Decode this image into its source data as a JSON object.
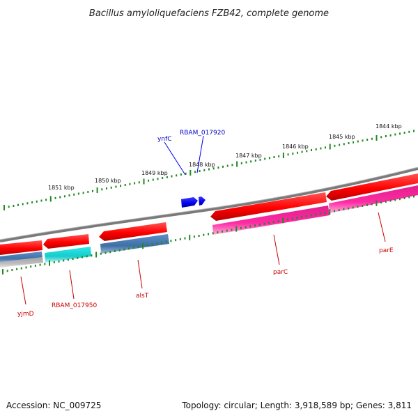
{
  "title": "Bacillus amyloliquefaciens FZB42, complete genome",
  "footer": {
    "accession": "Accession: NC_009725",
    "summary": "Topology: circular; Length: 3,918,589 bp; Genes: 3,811"
  },
  "kbp_labels": [
    "1851 kbp",
    "1850 kbp",
    "1849 kbp",
    "1848 kbp",
    "1847 kbp",
    "1846 kbp",
    "1845 kbp",
    "1844 kbp"
  ],
  "forward_labels": [
    "ynfC",
    "RBAM_017920"
  ],
  "reverse_labels": [
    "yjmD",
    "RBAM_017950",
    "alsT",
    "parC",
    "parE"
  ],
  "colors": {
    "cds": "#ff0000",
    "forward_gene": "#0000ee",
    "backbone": "#808080",
    "tick": "#228822",
    "steel_blue": "#4a7fb5",
    "cyan": "#22dddd",
    "magenta": "#ff2aa5",
    "grey": "#b4b4b4",
    "reverse_label": "#cc0000"
  }
}
